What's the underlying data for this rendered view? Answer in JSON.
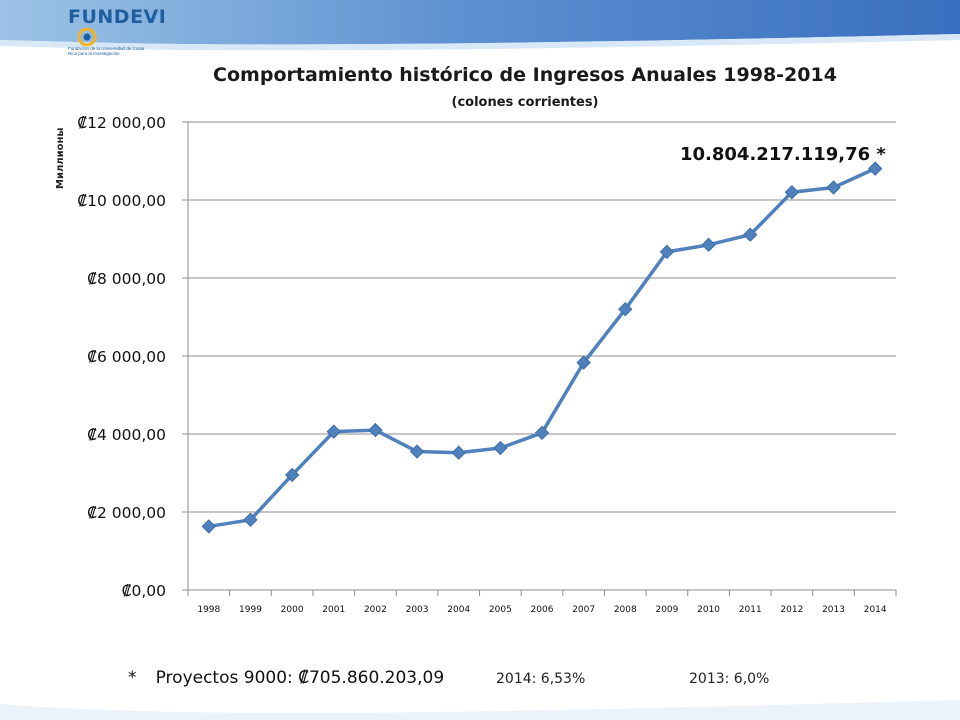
{
  "brand": {
    "name": "FUNDEVI",
    "tagline": "Fundación de la Universidad de Costa Rica para la Investigación",
    "primary_color": "#1f5fa0",
    "accent_color": "#f5b323"
  },
  "chart_data": {
    "type": "line",
    "title": "Comportamiento  histórico de Ingresos Anuales 1998-2014",
    "subtitle": "(colones corrientes)",
    "ylabel": "Миллионы",
    "xlabel": "",
    "categories": [
      "1998",
      "1999",
      "2000",
      "2001",
      "2002",
      "2003",
      "2004",
      "2005",
      "2006",
      "2007",
      "2008",
      "2009",
      "2010",
      "2011",
      "2012",
      "2013",
      "2014"
    ],
    "series": [
      {
        "name": "",
        "values": [
          1630,
          1800,
          2950,
          4060,
          4100,
          3550,
          3520,
          3640,
          4030,
          5830,
          7200,
          8670,
          8850,
          9110,
          10200,
          10320,
          10804.2
        ]
      }
    ],
    "ylim": [
      0,
      12000
    ],
    "yticks": [
      "₡0,00",
      "₡2 000,00",
      "₡4 000,00",
      "₡6 000,00",
      "₡8 000,00",
      "₡10 000,00",
      "₡12 000,00"
    ],
    "grid": true,
    "line_color": "#4f81bd",
    "annotation": "10.804.217.119,76  *"
  },
  "footer": {
    "star": "*",
    "projects": "Proyectos 9000: ₡705.860.203,09",
    "pct_2014": "2014: 6,53%",
    "pct_2013": "2013: 6,0%"
  }
}
